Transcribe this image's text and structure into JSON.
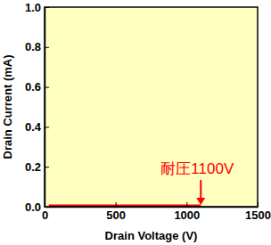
{
  "chart_data": {
    "type": "line",
    "x_label": "Drain Voltage (V)",
    "y_label": "Drain Current (mA)",
    "x": [
      30,
      200,
      400,
      600,
      800,
      1000,
      1100
    ],
    "series": [
      {
        "name": "Drain Current",
        "color": "#ff0000",
        "values": [
          0.005,
          0.005,
          0.005,
          0.005,
          0.005,
          0.005,
          0.005
        ]
      }
    ],
    "xlim": [
      0,
      1500
    ],
    "xticks": [
      0,
      500,
      1000,
      1500
    ],
    "ylim": [
      0,
      1
    ],
    "yticks": [
      {
        "value": 0,
        "label": "0.0"
      },
      0.2,
      0.4,
      0.6,
      0.8,
      {
        "value": 1,
        "label": "1.0"
      }
    ],
    "annotations": [
      {
        "text": "耐圧1100V",
        "x": 1100,
        "y": 0,
        "color": "#ff0000"
      }
    ],
    "grid": false
  }
}
